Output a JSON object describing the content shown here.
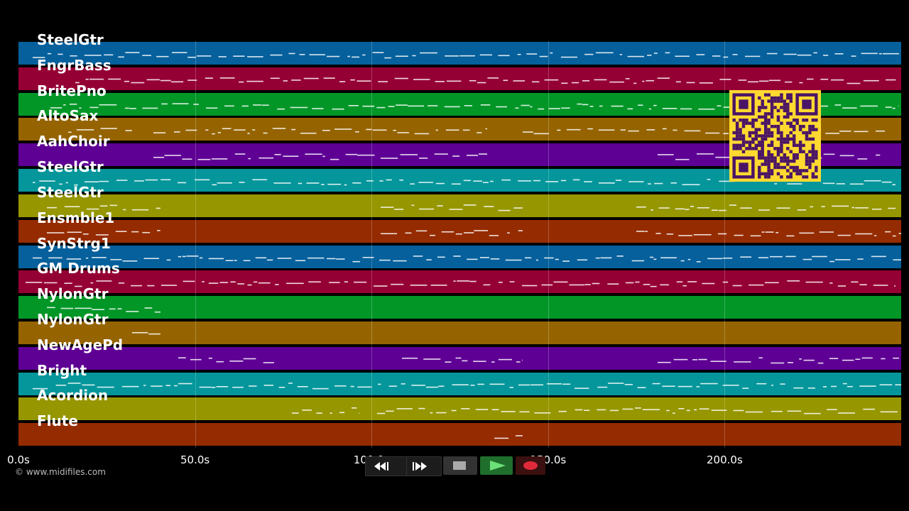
{
  "tracks": [
    {
      "name": "SteelGtr",
      "color": "#05609c"
    },
    {
      "name": "FngrBass",
      "color": "#950034"
    },
    {
      "name": "BritePno",
      "color": "#029627"
    },
    {
      "name": "AltoSax",
      "color": "#956400"
    },
    {
      "name": "AahChoir",
      "color": "#5e0094"
    },
    {
      "name": "SteelGtr",
      "color": "#04969a"
    },
    {
      "name": "SteelGtr",
      "color": "#969600"
    },
    {
      "name": "Ensmble1",
      "color": "#952b00"
    },
    {
      "name": "SynStrg1",
      "color": "#05609c"
    },
    {
      "name": "GM Drums",
      "color": "#950034"
    },
    {
      "name": "NylonGtr",
      "color": "#029627"
    },
    {
      "name": "NylonGtr",
      "color": "#956400"
    },
    {
      "name": "NewAgePd",
      "color": "#5e0094"
    },
    {
      "name": "Bright",
      "color": "#04969a"
    },
    {
      "name": "Acordion",
      "color": "#969600"
    },
    {
      "name": "Flute",
      "color": "#952b00"
    }
  ],
  "timeline": {
    "ticks": [
      "0.0s",
      "50.0s",
      "100.0s",
      "150.0s",
      "200.0s"
    ],
    "tick_values": [
      0,
      50,
      100,
      150,
      200
    ],
    "max_seconds": 250
  },
  "copyright": "© www.midifiles.com",
  "transport": {
    "rewind_icon": "rewind-icon",
    "forward_icon": "fast-forward-icon",
    "stop_icon": "stop-icon",
    "play_icon": "play-icon",
    "record_icon": "record-icon"
  },
  "qr": {
    "color": "#ffd930",
    "dark": "#4a1466"
  },
  "notes_color": "#ffffff"
}
